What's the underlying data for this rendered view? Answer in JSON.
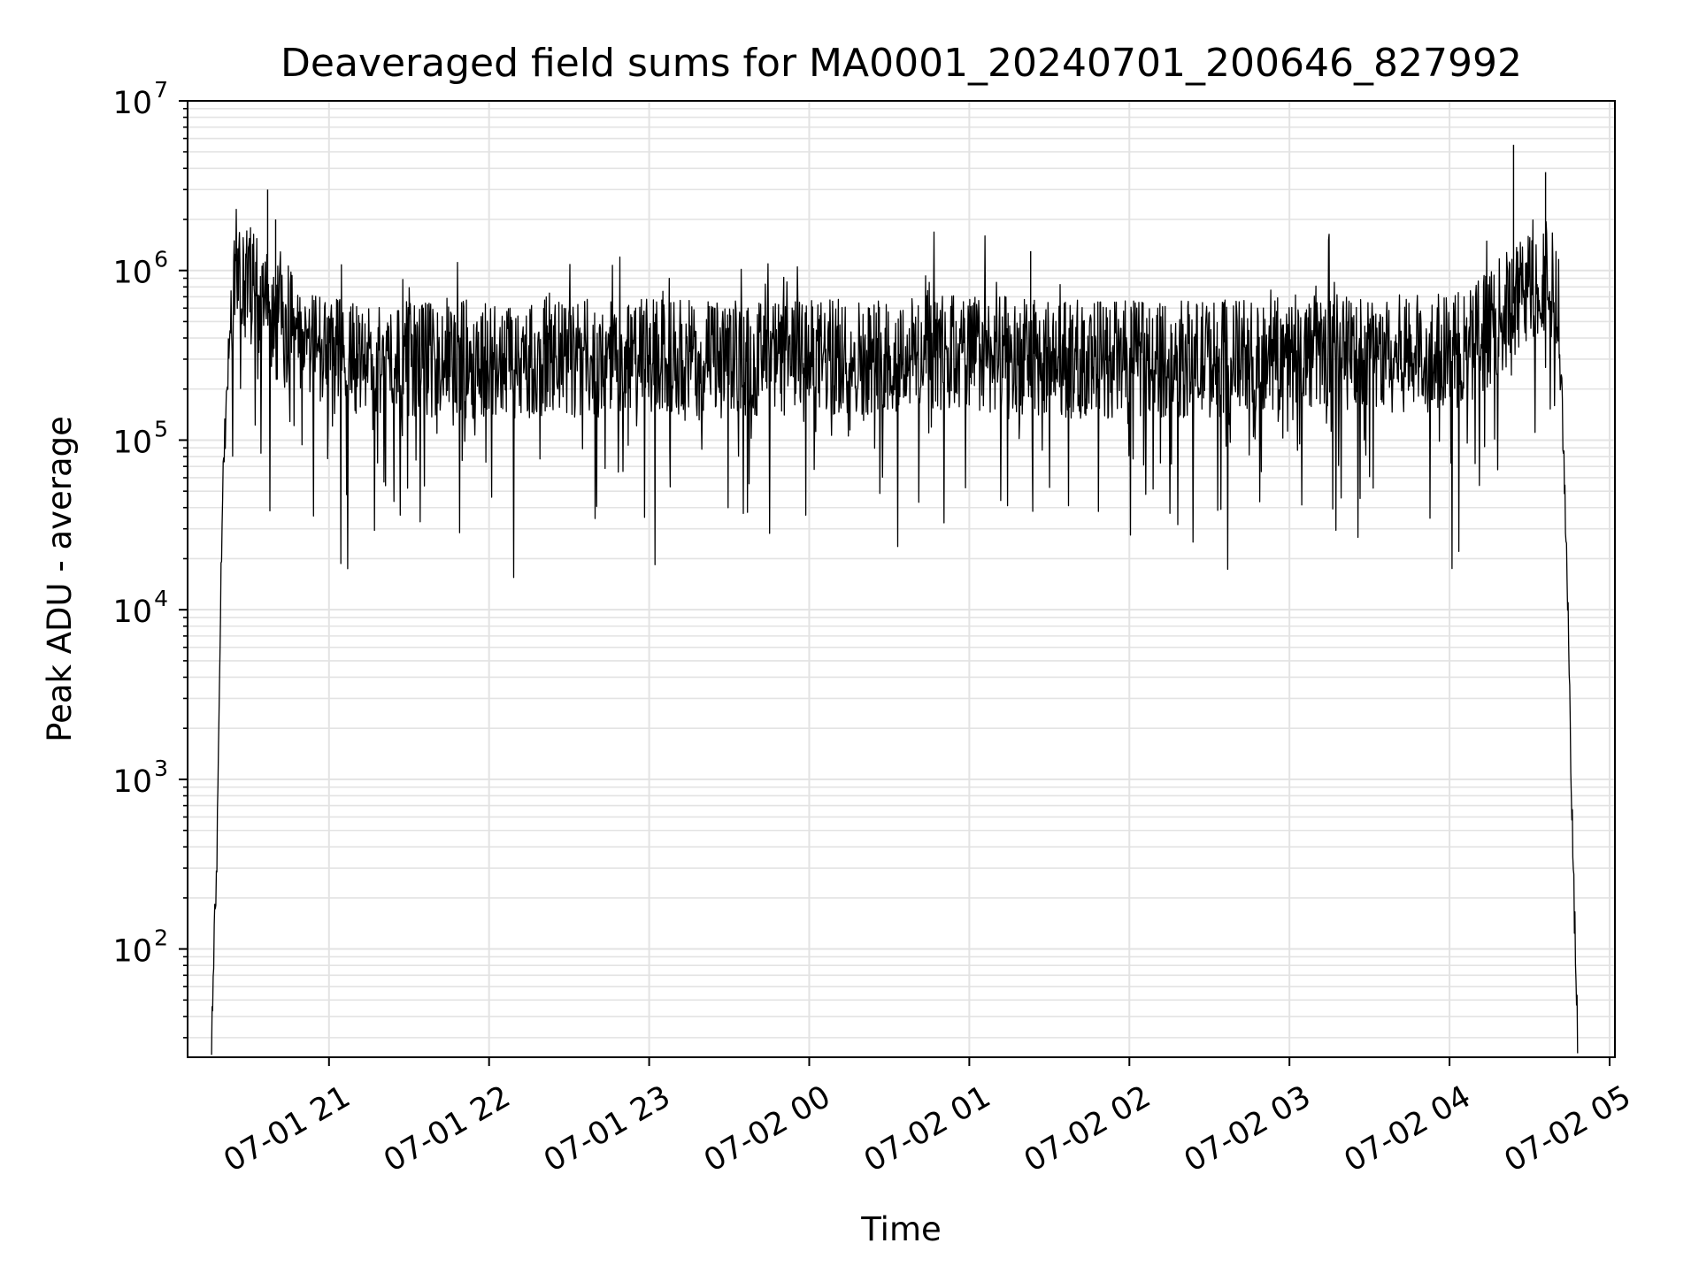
{
  "chart_data": {
    "type": "line",
    "title": "Deaveraged field sums for MA0001_20240701_200646_827992",
    "xlabel": "Time",
    "ylabel": "Peak ADU - average",
    "yscale": "log",
    "ylim": [
      23,
      10000000
    ],
    "xlim": [
      "2024-07-01 20:07",
      "2024-07-02 05:02"
    ],
    "grid": true,
    "line_color": "#000000",
    "grid_color": "#e3e3e3",
    "x_ticks": [
      {
        "at": "2024-07-01 21:00",
        "label": "07-01 21"
      },
      {
        "at": "2024-07-01 22:00",
        "label": "07-01 22"
      },
      {
        "at": "2024-07-01 23:00",
        "label": "07-01 23"
      },
      {
        "at": "2024-07-02 00:00",
        "label": "07-02 00"
      },
      {
        "at": "2024-07-02 01:00",
        "label": "07-02 01"
      },
      {
        "at": "2024-07-02 02:00",
        "label": "07-02 02"
      },
      {
        "at": "2024-07-02 03:00",
        "label": "07-02 03"
      },
      {
        "at": "2024-07-02 04:00",
        "label": "07-02 04"
      },
      {
        "at": "2024-07-02 05:00",
        "label": "07-02 05"
      }
    ],
    "y_ticks": [
      {
        "value": 100,
        "base": "10",
        "exp": "2"
      },
      {
        "value": 1000,
        "base": "10",
        "exp": "3"
      },
      {
        "value": 10000,
        "base": "10",
        "exp": "4"
      },
      {
        "value": 100000,
        "base": "10",
        "exp": "5"
      },
      {
        "value": 1000000,
        "base": "10",
        "exp": "6"
      },
      {
        "value": 10000000,
        "base": "10",
        "exp": "7"
      }
    ],
    "series": [
      {
        "x": [
          "2024-07-01 20:16",
          "2024-07-01 20:18",
          "2024-07-01 20:20",
          "2024-07-01 20:22",
          "2024-07-01 20:24",
          "2024-07-01 20:26",
          "2024-07-01 20:28",
          "2024-07-01 20:30",
          "2024-07-01 20:32",
          "2024-07-01 20:34",
          "2024-07-01 20:36",
          "2024-07-01 20:38",
          "2024-07-01 20:40",
          "2024-07-01 20:45",
          "2024-07-01 20:50",
          "2024-07-01 21:00",
          "2024-07-01 21:15",
          "2024-07-01 21:30",
          "2024-07-01 22:00",
          "2024-07-01 22:30",
          "2024-07-01 23:00",
          "2024-07-01 23:30",
          "2024-07-02 00:00",
          "2024-07-02 00:30",
          "2024-07-02 01:00",
          "2024-07-02 01:30",
          "2024-07-02 02:00",
          "2024-07-02 02:30",
          "2024-07-02 03:00",
          "2024-07-02 03:30",
          "2024-07-02 04:00",
          "2024-07-02 04:10",
          "2024-07-02 04:20",
          "2024-07-02 04:30",
          "2024-07-02 04:36",
          "2024-07-02 04:40",
          "2024-07-02 04:42",
          "2024-07-02 04:44",
          "2024-07-02 04:46",
          "2024-07-02 04:48"
        ],
        "values": [
          30,
          400,
          50000,
          250000,
          800000,
          1200000,
          1000000,
          900000,
          800000,
          700000,
          650000,
          600000,
          550000,
          480000,
          420000,
          320000,
          300000,
          300000,
          300000,
          300000,
          310000,
          300000,
          300000,
          320000,
          330000,
          300000,
          300000,
          300000,
          330000,
          320000,
          330000,
          400000,
          550000,
          800000,
          1000000,
          700000,
          200000,
          20000,
          500,
          30
        ],
        "noise_amplitude_decades": 0.35,
        "dip_depth_decades": 1.0,
        "spikes": [
          {
            "x": "2024-07-01 20:37",
            "value": 3000000
          },
          {
            "x": "2024-07-01 20:40",
            "value": 2000000
          },
          {
            "x": "2024-07-02 01:23",
            "value": 1300000
          },
          {
            "x": "2024-07-02 04:24",
            "value": 5500000
          },
          {
            "x": "2024-07-02 04:36",
            "value": 3800000
          }
        ]
      }
    ]
  }
}
